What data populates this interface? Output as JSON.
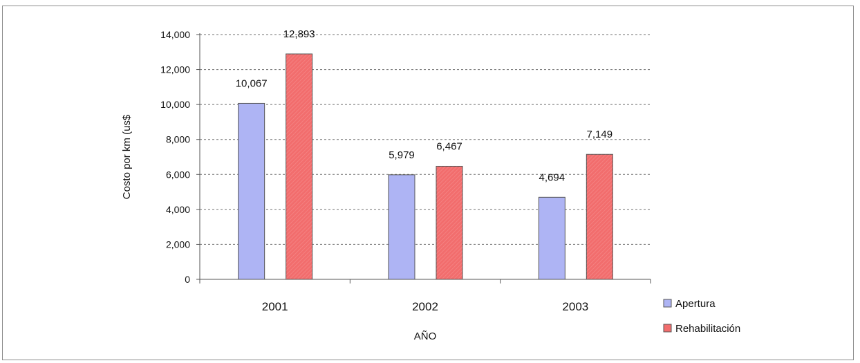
{
  "chart_data": {
    "type": "bar",
    "title": "",
    "xlabel": "AÑO",
    "ylabel": "Costo por km (us$",
    "categories": [
      "2001",
      "2002",
      "2003"
    ],
    "series": [
      {
        "name": "Apertura",
        "values": [
          10067,
          5979,
          4694
        ],
        "labels": [
          "10,067",
          "5,979",
          "4,694"
        ],
        "color": "#aeb4f4"
      },
      {
        "name": "Rehabilitación",
        "values": [
          12893,
          6467,
          7149
        ],
        "labels": [
          "12,893",
          "6,467",
          "7,149"
        ],
        "color": "#f26d6d"
      }
    ],
    "ylim": [
      0,
      14000
    ],
    "yticks": [
      0,
      2000,
      4000,
      6000,
      8000,
      10000,
      12000,
      14000
    ],
    "ytick_labels": [
      "0",
      "2,000",
      "4,000",
      "6,000",
      "8,000",
      "10,000",
      "12,000",
      "14,000"
    ],
    "grid": true,
    "grid_style": "dashed",
    "legend_position": "bottom-right"
  }
}
